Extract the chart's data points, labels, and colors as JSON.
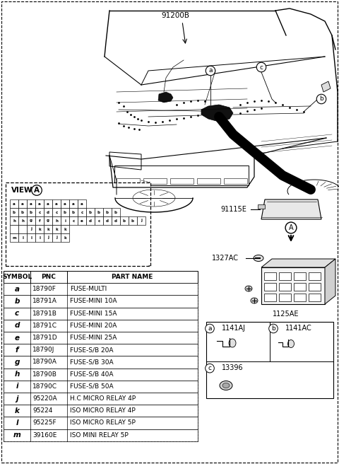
{
  "bg_color": "#ffffff",
  "label_91200B": "91200B",
  "label_91115E": "91115E",
  "label_1327AC": "1327AC",
  "label_1125AE": "1125AE",
  "label_A": "A",
  "view_a_title": "VIEW",
  "view_a_circle": "A",
  "table_headers": [
    "SYMBOL",
    "PNC",
    "PART NAME"
  ],
  "table_rows": [
    [
      "a",
      "18790F",
      "FUSE-MULTI"
    ],
    [
      "b",
      "18791A",
      "FUSE-MINI 10A"
    ],
    [
      "c",
      "18791B",
      "FUSE-MINI 15A"
    ],
    [
      "d",
      "18791C",
      "FUSE-MINI 20A"
    ],
    [
      "e",
      "18791D",
      "FUSE-MINI 25A"
    ],
    [
      "f",
      "18790J",
      "FUSE-S/B 20A"
    ],
    [
      "g",
      "18790A",
      "FUSE-S/B 30A"
    ],
    [
      "h",
      "18790B",
      "FUSE-S/B 40A"
    ],
    [
      "i",
      "18790C",
      "FUSE-S/B 50A"
    ],
    [
      "j",
      "95220A",
      "H.C MICRO RELAY 4P"
    ],
    [
      "k",
      "95224",
      "ISO MICRO RELAY 4P"
    ],
    [
      "l",
      "95225F",
      "ISO MICRO RELAY 5P"
    ],
    [
      "m",
      "39160E",
      "ISO MINI RELAY 5P"
    ]
  ],
  "view_grid": [
    [
      "a",
      "a",
      "a",
      "a",
      "a",
      "a",
      "a",
      "a",
      "a"
    ],
    [
      "b",
      "b",
      "b",
      "c",
      "d",
      "c",
      "b",
      "b",
      "c",
      "b",
      "b",
      "b",
      "b"
    ],
    [
      "h",
      "h",
      "g",
      "f",
      "g",
      "h",
      "i",
      "c",
      "e",
      "d",
      "c",
      "d",
      "d",
      "b",
      "b",
      "j"
    ],
    [
      "",
      "",
      "j",
      "k",
      "k",
      "k",
      "k"
    ],
    [
      "m",
      "l",
      "l",
      "l",
      "j",
      "j",
      "k"
    ]
  ],
  "connector_a": "1141AJ",
  "connector_b": "1141AC",
  "connector_c": "13396"
}
